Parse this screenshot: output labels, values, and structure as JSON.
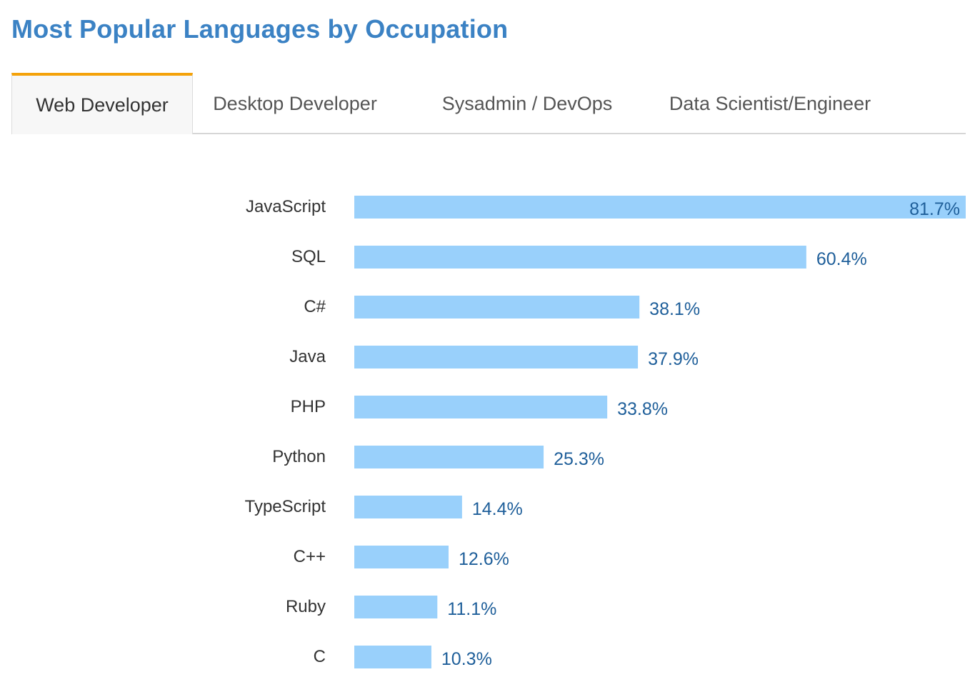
{
  "page": {
    "title": "Most Popular Languages by Occupation"
  },
  "tabs": [
    {
      "label": "Web Developer",
      "active": true
    },
    {
      "label": "Desktop Developer",
      "active": false
    },
    {
      "label": "Sysadmin / DevOps",
      "active": false
    },
    {
      "label": "Data Scientist/Engineer",
      "active": false
    }
  ],
  "colors": {
    "title": "#3b82c4",
    "bar": "#99d0fb",
    "value_text": "#1f5f9a",
    "active_tab_border": "#f4a20a"
  },
  "chart_data": {
    "type": "bar",
    "orientation": "horizontal",
    "categories": [
      "JavaScript",
      "SQL",
      "C#",
      "Java",
      "PHP",
      "Python",
      "TypeScript",
      "C++",
      "Ruby",
      "C"
    ],
    "values": [
      81.7,
      60.4,
      38.1,
      37.9,
      33.8,
      25.3,
      14.4,
      12.6,
      11.1,
      10.3
    ],
    "value_labels": [
      "81.7%",
      "60.4%",
      "38.1%",
      "37.9%",
      "33.8%",
      "25.3%",
      "14.4%",
      "12.6%",
      "11.1%",
      "10.3%"
    ],
    "title": "",
    "xlabel": "",
    "ylabel": "",
    "xlim": [
      0,
      81.7
    ],
    "grid": false,
    "legend": "none"
  }
}
